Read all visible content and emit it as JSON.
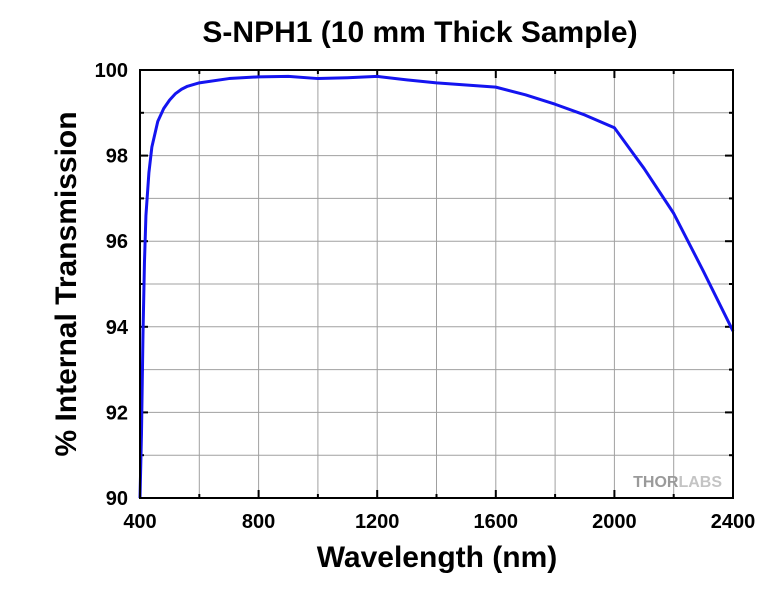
{
  "chart_data": {
    "type": "line",
    "title": "S-NPH1 (10 mm Thick Sample)",
    "xlabel": "Wavelength (nm)",
    "ylabel": "% Internal Transmission",
    "xlim": [
      400,
      2400
    ],
    "ylim": [
      90,
      100
    ],
    "xticks": [
      400,
      800,
      1200,
      1600,
      2000,
      2400
    ],
    "yticks": [
      90,
      92,
      94,
      96,
      98,
      100
    ],
    "grid": true,
    "line_color": "#1414f0",
    "series": [
      {
        "x": [
          400,
          405,
          410,
          415,
          420,
          430,
          440,
          460,
          480,
          500,
          520,
          540,
          560,
          600,
          700,
          800,
          900,
          1000,
          1100,
          1200,
          1300,
          1400,
          1500,
          1600,
          1700,
          1800,
          1900,
          2000,
          2100,
          2200,
          2300,
          2400
        ],
        "values": [
          90.0,
          91.5,
          93.8,
          95.5,
          96.6,
          97.6,
          98.2,
          98.8,
          99.1,
          99.3,
          99.45,
          99.55,
          99.62,
          99.7,
          99.8,
          99.84,
          99.85,
          99.8,
          99.82,
          99.85,
          99.77,
          99.7,
          99.65,
          99.6,
          99.42,
          99.2,
          98.95,
          98.65,
          97.7,
          96.65,
          95.3,
          93.9
        ]
      }
    ]
  },
  "watermark": {
    "part1": "THOR",
    "part2": "LABS",
    "color1": "#9a9a9a",
    "color2": "#c4c4c4"
  }
}
